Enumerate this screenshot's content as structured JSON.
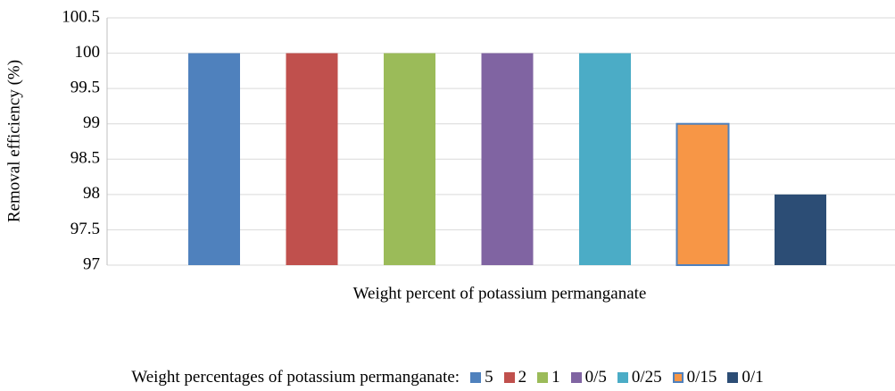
{
  "chart_data": {
    "type": "bar",
    "ylabel": "Removal efficiency (%)",
    "xlabel": "Weight percent of potassium permanganate",
    "legend_title": "Weight percentages of potassium permanganate:",
    "categories": [
      null
    ],
    "series": [
      {
        "name": "5",
        "color": "#4f81bd",
        "values": [
          100
        ]
      },
      {
        "name": "2",
        "color": "#c0504d",
        "values": [
          100
        ]
      },
      {
        "name": "1",
        "color": "#9bbb59",
        "values": [
          100
        ]
      },
      {
        "name": "0/5",
        "color": "#8064a2",
        "values": [
          100
        ]
      },
      {
        "name": "0/25",
        "color": "#4bacc6",
        "values": [
          100
        ]
      },
      {
        "name": "0/15",
        "color": "#f79646",
        "values": [
          99
        ]
      },
      {
        "name": "0/1",
        "color": "#2c4d75",
        "values": [
          98
        ]
      }
    ],
    "ylim": [
      97,
      100.5
    ],
    "yticks": [
      97,
      97.5,
      98,
      98.5,
      99,
      99.5,
      100,
      100.5
    ],
    "grid": true,
    "legend_position": "bottom"
  }
}
